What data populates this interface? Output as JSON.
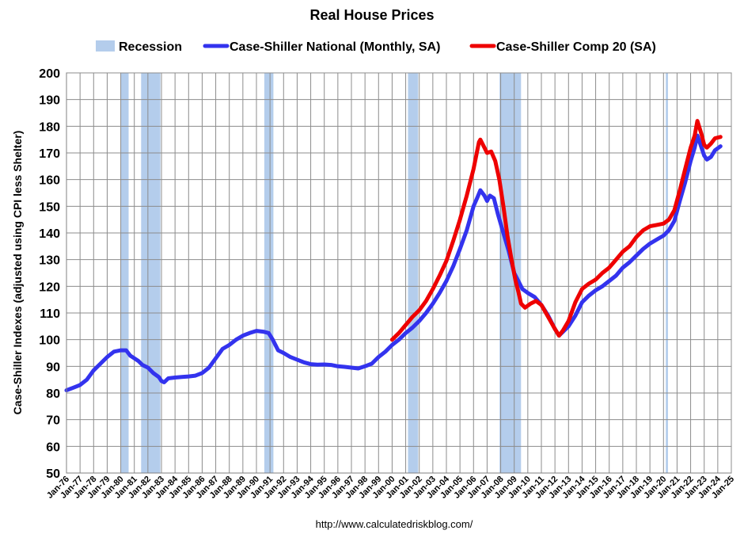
{
  "chart_data": {
    "type": "line",
    "title": "Real House Prices",
    "ylabel": "Case-Shiller Indexes (adjusted using CPI less Shelter)",
    "xlabel": "",
    "source": "http://www.calculatedriskblog.com/",
    "ylim": [
      50,
      200
    ],
    "yticks": [
      50,
      60,
      70,
      80,
      90,
      100,
      110,
      120,
      130,
      140,
      150,
      160,
      170,
      180,
      190,
      200
    ],
    "xlim": [
      1976,
      2025
    ],
    "xtick_labels": [
      "Jan-76",
      "Jan-77",
      "Jan-78",
      "Jan-79",
      "Jan-80",
      "Jan-81",
      "Jan-82",
      "Jan-83",
      "Jan-84",
      "Jan-85",
      "Jan-86",
      "Jan-87",
      "Jan-88",
      "Jan-89",
      "Jan-90",
      "Jan-91",
      "Jan-92",
      "Jan-93",
      "Jan-94",
      "Jan-95",
      "Jan-96",
      "Jan-97",
      "Jan-98",
      "Jan-99",
      "Jan-00",
      "Jan-01",
      "Jan-02",
      "Jan-03",
      "Jan-04",
      "Jan-05",
      "Jan-06",
      "Jan-07",
      "Jan-08",
      "Jan-09",
      "Jan-10",
      "Jan-11",
      "Jan-12",
      "Jan-13",
      "Jan-14",
      "Jan-15",
      "Jan-16",
      "Jan-17",
      "Jan-18",
      "Jan-19",
      "Jan-20",
      "Jan-21",
      "Jan-22",
      "Jan-23",
      "Jan-24",
      "Jan-25"
    ],
    "grid": true,
    "legend_position": "top",
    "legend": [
      {
        "label": "Recession",
        "kind": "band",
        "color": "#b4cdec"
      },
      {
        "label": "Case-Shiller National (Monthly, SA)",
        "kind": "line",
        "color": "#3333ee"
      },
      {
        "label": "Case-Shiller Comp 20  (SA)",
        "kind": "line",
        "color": "#ee0000"
      }
    ],
    "recessions": [
      [
        1980.0,
        1980.58
      ],
      [
        1981.5,
        1982.92
      ],
      [
        1990.58,
        1991.25
      ],
      [
        2001.17,
        2001.92
      ],
      [
        2007.92,
        2009.5
      ],
      [
        2020.17,
        2020.33
      ]
    ],
    "series": [
      {
        "name": "Case-Shiller National (Monthly, SA)",
        "color": "#3333ee",
        "points": [
          [
            1976.0,
            81.0
          ],
          [
            1976.5,
            82.0
          ],
          [
            1977.0,
            83.0
          ],
          [
            1977.5,
            85.0
          ],
          [
            1978.0,
            88.5
          ],
          [
            1978.5,
            91.0
          ],
          [
            1979.0,
            93.5
          ],
          [
            1979.5,
            95.5
          ],
          [
            1980.0,
            96.0
          ],
          [
            1980.4,
            96.0
          ],
          [
            1980.7,
            94.0
          ],
          [
            1981.0,
            93.0
          ],
          [
            1981.3,
            92.0
          ],
          [
            1981.6,
            90.5
          ],
          [
            1982.0,
            89.5
          ],
          [
            1982.4,
            87.5
          ],
          [
            1982.8,
            86.0
          ],
          [
            1983.0,
            84.5
          ],
          [
            1983.2,
            84.0
          ],
          [
            1983.5,
            85.5
          ],
          [
            1984.0,
            85.8
          ],
          [
            1984.5,
            86.0
          ],
          [
            1985.0,
            86.2
          ],
          [
            1985.5,
            86.5
          ],
          [
            1986.0,
            87.5
          ],
          [
            1986.5,
            89.5
          ],
          [
            1987.0,
            93.0
          ],
          [
            1987.5,
            96.5
          ],
          [
            1988.0,
            98.0
          ],
          [
            1988.5,
            100.0
          ],
          [
            1989.0,
            101.5
          ],
          [
            1989.5,
            102.5
          ],
          [
            1990.0,
            103.3
          ],
          [
            1990.5,
            103.0
          ],
          [
            1990.9,
            102.5
          ],
          [
            1991.2,
            100.0
          ],
          [
            1991.6,
            96.0
          ],
          [
            1992.0,
            95.0
          ],
          [
            1992.5,
            93.5
          ],
          [
            1993.0,
            92.5
          ],
          [
            1993.5,
            91.5
          ],
          [
            1994.0,
            90.8
          ],
          [
            1994.5,
            90.6
          ],
          [
            1995.0,
            90.7
          ],
          [
            1995.5,
            90.5
          ],
          [
            1996.0,
            90.0
          ],
          [
            1996.5,
            89.8
          ],
          [
            1997.0,
            89.5
          ],
          [
            1997.5,
            89.2
          ],
          [
            1998.0,
            90.0
          ],
          [
            1998.5,
            91.0
          ],
          [
            1999.0,
            93.5
          ],
          [
            1999.5,
            95.5
          ],
          [
            2000.0,
            98.0
          ],
          [
            2000.5,
            100.0
          ],
          [
            2001.0,
            102.5
          ],
          [
            2001.5,
            104.5
          ],
          [
            2002.0,
            107.0
          ],
          [
            2002.5,
            110.0
          ],
          [
            2003.0,
            113.5
          ],
          [
            2003.5,
            117.5
          ],
          [
            2004.0,
            122.0
          ],
          [
            2004.5,
            127.5
          ],
          [
            2005.0,
            134.0
          ],
          [
            2005.5,
            141.0
          ],
          [
            2006.0,
            150.0
          ],
          [
            2006.3,
            153.5
          ],
          [
            2006.5,
            156.0
          ],
          [
            2006.8,
            154.0
          ],
          [
            2007.0,
            152.0
          ],
          [
            2007.2,
            154.0
          ],
          [
            2007.5,
            153.0
          ],
          [
            2007.8,
            147.0
          ],
          [
            2008.2,
            140.0
          ],
          [
            2008.6,
            133.0
          ],
          [
            2009.0,
            125.0
          ],
          [
            2009.3,
            122.0
          ],
          [
            2009.6,
            119.0
          ],
          [
            2010.0,
            117.5
          ],
          [
            2010.5,
            116.0
          ],
          [
            2011.0,
            113.0
          ],
          [
            2011.5,
            109.0
          ],
          [
            2012.0,
            104.0
          ],
          [
            2012.3,
            101.5
          ],
          [
            2012.6,
            103.0
          ],
          [
            2013.0,
            105.0
          ],
          [
            2013.5,
            109.0
          ],
          [
            2014.0,
            114.0
          ],
          [
            2014.5,
            116.5
          ],
          [
            2015.0,
            118.5
          ],
          [
            2015.5,
            120.0
          ],
          [
            2016.0,
            122.0
          ],
          [
            2016.5,
            124.0
          ],
          [
            2017.0,
            127.0
          ],
          [
            2017.5,
            129.0
          ],
          [
            2018.0,
            131.5
          ],
          [
            2018.5,
            134.0
          ],
          [
            2019.0,
            136.0
          ],
          [
            2019.5,
            137.5
          ],
          [
            2020.0,
            139.0
          ],
          [
            2020.4,
            141.0
          ],
          [
            2020.8,
            144.5
          ],
          [
            2021.2,
            152.0
          ],
          [
            2021.6,
            159.0
          ],
          [
            2022.0,
            167.0
          ],
          [
            2022.3,
            172.0
          ],
          [
            2022.5,
            176.5
          ],
          [
            2022.8,
            172.0
          ],
          [
            2023.0,
            169.0
          ],
          [
            2023.2,
            167.5
          ],
          [
            2023.5,
            168.5
          ],
          [
            2023.8,
            171.0
          ],
          [
            2024.2,
            172.5
          ]
        ]
      },
      {
        "name": "Case-Shiller Comp 20  (SA)",
        "color": "#ee0000",
        "points": [
          [
            2000.0,
            100.0
          ],
          [
            2000.5,
            102.5
          ],
          [
            2001.0,
            105.5
          ],
          [
            2001.5,
            108.5
          ],
          [
            2002.0,
            111.0
          ],
          [
            2002.5,
            114.5
          ],
          [
            2003.0,
            119.0
          ],
          [
            2003.5,
            124.0
          ],
          [
            2004.0,
            129.5
          ],
          [
            2004.5,
            137.0
          ],
          [
            2005.0,
            145.0
          ],
          [
            2005.5,
            154.0
          ],
          [
            2006.0,
            164.0
          ],
          [
            2006.2,
            169.0
          ],
          [
            2006.4,
            174.0
          ],
          [
            2006.5,
            175.0
          ],
          [
            2006.8,
            172.0
          ],
          [
            2007.0,
            170.0
          ],
          [
            2007.3,
            170.5
          ],
          [
            2007.6,
            167.0
          ],
          [
            2007.9,
            160.0
          ],
          [
            2008.2,
            150.0
          ],
          [
            2008.5,
            139.0
          ],
          [
            2008.8,
            130.0
          ],
          [
            2009.1,
            122.0
          ],
          [
            2009.3,
            118.0
          ],
          [
            2009.5,
            113.5
          ],
          [
            2009.8,
            112.0
          ],
          [
            2010.2,
            113.5
          ],
          [
            2010.6,
            114.5
          ],
          [
            2011.0,
            113.0
          ],
          [
            2011.5,
            108.5
          ],
          [
            2012.0,
            104.0
          ],
          [
            2012.3,
            101.5
          ],
          [
            2012.6,
            103.5
          ],
          [
            2013.0,
            107.0
          ],
          [
            2013.5,
            114.0
          ],
          [
            2014.0,
            119.0
          ],
          [
            2014.5,
            121.0
          ],
          [
            2015.0,
            122.5
          ],
          [
            2015.5,
            125.0
          ],
          [
            2016.0,
            127.0
          ],
          [
            2016.5,
            130.0
          ],
          [
            2017.0,
            133.0
          ],
          [
            2017.5,
            135.0
          ],
          [
            2018.0,
            138.5
          ],
          [
            2018.5,
            141.0
          ],
          [
            2019.0,
            142.5
          ],
          [
            2019.5,
            143.0
          ],
          [
            2020.0,
            143.5
          ],
          [
            2020.4,
            145.0
          ],
          [
            2020.8,
            148.5
          ],
          [
            2021.2,
            156.0
          ],
          [
            2021.6,
            164.0
          ],
          [
            2022.0,
            172.0
          ],
          [
            2022.3,
            176.5
          ],
          [
            2022.5,
            182.0
          ],
          [
            2022.8,
            177.0
          ],
          [
            2023.0,
            173.0
          ],
          [
            2023.2,
            172.0
          ],
          [
            2023.5,
            173.5
          ],
          [
            2023.8,
            175.5
          ],
          [
            2024.2,
            176.0
          ]
        ]
      }
    ]
  }
}
